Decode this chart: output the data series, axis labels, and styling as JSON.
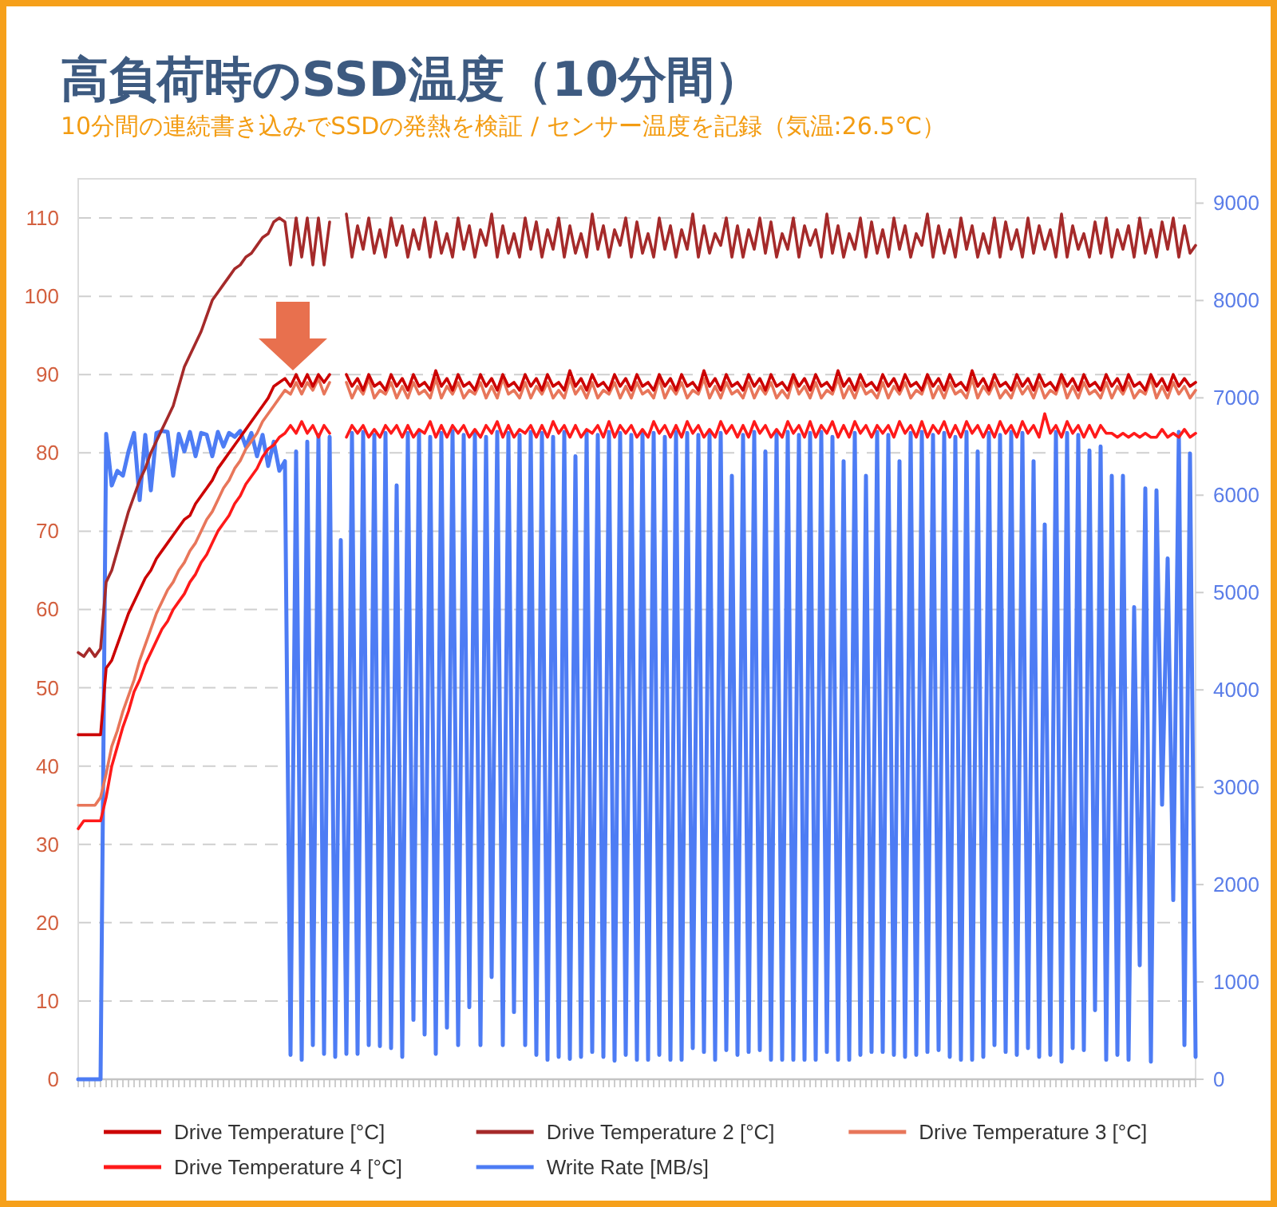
{
  "chart_data": {
    "type": "line",
    "title": "高負荷時のSSD温度（10分間）",
    "subtitle": "10分間の連続書き込みでSSDの発熱を検証 / センサー温度を記録（気温:26.5℃）",
    "categories": [
      null,
      null,
      null,
      null,
      null,
      null,
      null,
      null,
      null,
      null,
      null,
      null,
      null,
      null,
      null,
      null,
      null,
      null,
      null,
      null,
      null,
      null,
      null,
      null,
      null,
      null,
      null,
      null,
      null,
      null,
      null,
      null,
      null,
      null,
      null,
      null,
      null,
      null,
      null,
      null,
      null,
      null,
      null,
      null,
      null,
      null,
      null,
      null,
      null,
      null,
      null,
      null,
      null,
      null,
      null,
      null,
      null,
      null,
      null,
      null,
      null,
      null,
      null,
      null,
      null,
      null,
      null,
      null,
      null,
      null,
      null,
      null,
      null,
      null,
      null,
      null,
      null,
      null,
      null,
      null,
      null,
      null,
      null,
      null,
      null,
      null,
      null,
      null,
      null,
      null,
      null,
      null,
      null,
      null,
      null,
      null,
      null,
      null,
      null,
      null,
      null,
      null,
      null,
      null,
      null,
      null,
      null,
      null,
      null,
      null,
      null,
      null,
      null,
      null,
      null,
      null,
      null,
      null,
      null,
      null,
      null,
      null,
      null,
      null,
      null,
      null,
      null,
      null,
      null,
      null,
      null,
      null,
      null,
      null,
      null,
      null,
      null,
      null,
      null,
      null,
      null,
      null,
      null,
      null,
      null,
      null,
      null,
      null,
      null,
      null,
      null,
      null,
      null,
      null,
      null,
      null,
      null,
      null,
      null,
      null,
      null,
      null,
      null,
      null,
      null,
      null,
      null,
      null,
      null,
      null,
      null,
      null,
      null,
      null,
      null,
      null,
      null,
      null,
      null,
      null,
      null,
      null,
      null,
      null,
      null,
      null,
      null,
      null,
      null,
      null,
      null,
      null,
      null,
      null,
      null,
      null,
      null,
      null,
      null,
      null,
      null
    ],
    "ylim": [
      0,
      115
    ],
    "yticks": [
      0,
      10,
      20,
      30,
      40,
      50,
      60,
      70,
      80,
      90,
      100,
      110
    ],
    "y2lim": [
      0,
      9250
    ],
    "y2ticks": [
      0,
      1000,
      2000,
      3000,
      4000,
      5000,
      6000,
      7000,
      8000,
      9000
    ],
    "grid": "y",
    "legend": "bottom",
    "series": [
      {
        "name": "Drive Temperature [°C]",
        "color": "#cc0000",
        "values": [
          44,
          44,
          44,
          44,
          44,
          52.5,
          53.5,
          55.5,
          57.5,
          59.5,
          61,
          62.5,
          64,
          65,
          66.5,
          67.5,
          68.5,
          69.5,
          70.5,
          71.5,
          72,
          73.5,
          74.5,
          75.5,
          76.5,
          78,
          79,
          80,
          81,
          82,
          83,
          84,
          85,
          86,
          87,
          88.5,
          89,
          89.5,
          88.5,
          90,
          88.5,
          90,
          88.5,
          90,
          89,
          90,
          null,
          null,
          90,
          88.5,
          89.5,
          88,
          90,
          88.5,
          89,
          88,
          90,
          88.5,
          89.5,
          88,
          90,
          88.5,
          89,
          88,
          90.5,
          88.5,
          89.5,
          88,
          90,
          88.5,
          89,
          88,
          90,
          88.5,
          89.5,
          88,
          90,
          88.5,
          89,
          88,
          90,
          88.5,
          89.5,
          88,
          90,
          88.5,
          89,
          88,
          90.5,
          88.5,
          89.5,
          88,
          90,
          88.5,
          89,
          88,
          90,
          88.5,
          89.5,
          88,
          90,
          88.5,
          89,
          88,
          90,
          88.5,
          89.5,
          88,
          90,
          88.5,
          89,
          88,
          90.5,
          88.5,
          89.5,
          88,
          90,
          88.5,
          89,
          88,
          90,
          88.5,
          89.5,
          88,
          90,
          88.5,
          89,
          88,
          90,
          88.5,
          89.5,
          88,
          90,
          88.5,
          89,
          88,
          90.5,
          88.5,
          89.5,
          88,
          90,
          88.5,
          89,
          88,
          90,
          88.5,
          89.5,
          88,
          90,
          88.5,
          89,
          88,
          90,
          88.5,
          89.5,
          88,
          90,
          88.5,
          89,
          88,
          90.5,
          88.5,
          89.5,
          88,
          90,
          88.5,
          89,
          88,
          90,
          88.5,
          89.5,
          88,
          90,
          88.5,
          89,
          88,
          90,
          88.5,
          89.5,
          88,
          90,
          88.5,
          89,
          88,
          90,
          88.5,
          89.5,
          88,
          90,
          88.5,
          89,
          88,
          90,
          88.5,
          89.5,
          88,
          90,
          88.5,
          89.5,
          88.5,
          89
        ]
      },
      {
        "name": "Drive Temperature 2 [°C]",
        "color": "#a52a2a",
        "values": [
          54.5,
          54,
          55,
          54,
          55,
          63.5,
          65,
          67.5,
          70,
          72.5,
          74.5,
          76.5,
          78,
          80,
          81.5,
          83,
          84.5,
          86,
          88.5,
          91,
          92.5,
          94,
          95.5,
          97.5,
          99.5,
          100.5,
          101.5,
          102.5,
          103.5,
          104,
          105,
          105.5,
          106.5,
          107.5,
          108,
          109.5,
          110,
          109.5,
          104,
          110,
          105,
          110,
          104,
          110,
          104,
          109.5,
          null,
          null,
          110.5,
          105,
          109,
          106,
          110,
          105.5,
          108.5,
          105,
          110,
          106.5,
          109,
          105,
          108.5,
          106,
          110,
          105,
          109.5,
          105.5,
          108,
          105,
          110,
          106,
          109,
          105,
          108.5,
          106.5,
          110.5,
          105,
          109,
          105.5,
          108,
          105,
          110,
          106,
          109.5,
          105,
          108.5,
          106,
          110,
          105,
          109,
          105.5,
          108,
          105,
          110.5,
          106,
          109,
          105,
          108.5,
          106.5,
          110,
          105,
          109.5,
          105.5,
          108,
          105,
          110,
          106,
          109,
          105,
          108.5,
          106,
          110.5,
          105,
          109,
          105.5,
          108,
          106.5,
          110,
          105,
          109,
          105,
          108.5,
          106,
          110,
          105.5,
          109.5,
          105,
          108,
          106,
          110,
          105,
          109,
          106.5,
          108.5,
          105,
          110.5,
          105.5,
          109,
          105,
          108,
          106,
          110,
          105,
          109.5,
          105.5,
          108.5,
          105,
          110,
          106,
          109,
          105,
          108,
          106.5,
          110.5,
          105,
          109,
          105.5,
          108.5,
          105,
          110,
          106,
          109,
          105,
          108,
          105.5,
          110,
          105,
          109.5,
          106,
          108.5,
          105,
          110,
          105.5,
          109,
          106,
          108.5,
          105,
          110.5,
          105,
          109,
          106,
          108,
          105,
          109.5,
          105.5,
          110,
          105,
          108.5,
          106,
          109,
          105,
          110,
          105.5,
          108.5,
          105,
          109.5,
          106,
          110,
          105,
          109,
          105.5,
          106.5
        ]
      },
      {
        "name": "Drive Temperature 3 [°C]",
        "color": "#e8765a",
        "values": [
          35,
          35,
          35,
          35,
          36,
          39,
          42.5,
          44.5,
          47,
          49,
          51,
          53.5,
          55.5,
          57.5,
          59.5,
          61,
          62.5,
          63.5,
          65,
          66,
          67.5,
          68.5,
          70,
          71.5,
          72.5,
          74,
          75.5,
          76.5,
          78,
          79,
          80.5,
          81.5,
          82.5,
          84,
          85,
          86,
          87,
          88,
          87.5,
          89,
          87.5,
          89,
          88,
          89.5,
          87.5,
          89,
          null,
          null,
          89,
          87,
          88.5,
          87.5,
          89.5,
          87,
          88,
          87.5,
          89,
          87,
          88.5,
          87,
          89,
          87.5,
          88,
          87,
          89.5,
          87,
          88.5,
          87.5,
          89,
          87,
          88,
          87.5,
          89,
          87,
          88.5,
          87,
          89.5,
          87.5,
          88,
          87,
          89,
          87,
          88.5,
          87.5,
          89,
          87,
          88,
          87,
          89.5,
          87.5,
          88.5,
          87,
          89,
          87,
          88,
          87.5,
          89,
          87,
          88.5,
          87,
          89,
          87.5,
          88,
          87,
          89.5,
          87,
          88.5,
          87.5,
          89,
          87,
          88,
          87.5,
          89.5,
          87,
          88.5,
          87,
          89,
          87.5,
          88,
          87,
          89,
          87,
          88.5,
          87.5,
          89,
          87,
          88,
          87,
          89.5,
          87.5,
          88.5,
          87,
          89,
          87,
          88,
          87.5,
          89.5,
          87,
          88.5,
          87,
          89,
          87.5,
          88,
          87,
          89,
          87,
          88.5,
          87.5,
          89,
          87,
          88,
          87.5,
          89.5,
          87,
          88.5,
          87,
          89,
          87.5,
          88,
          87,
          89.5,
          87,
          88.5,
          87.5,
          89,
          87,
          88,
          87,
          89,
          87.5,
          88.5,
          87,
          89,
          87,
          88,
          87.5,
          89.5,
          87,
          88.5,
          87,
          89,
          87.5,
          88,
          87,
          89,
          87,
          88.5,
          87.5,
          89,
          87,
          88,
          87.5,
          89.5,
          87,
          88.5,
          87,
          89,
          87.5,
          88.5,
          87,
          88
        ]
      },
      {
        "name": "Drive Temperature 4 [°C]",
        "color": "#ff1a1a",
        "values": [
          32,
          33,
          33,
          33,
          33,
          36,
          40,
          42.5,
          45,
          47,
          49.5,
          51,
          53,
          54.5,
          56,
          57.5,
          58.5,
          60,
          61,
          62,
          63.5,
          64.5,
          66,
          67,
          68.5,
          70,
          71,
          72,
          73.5,
          74.5,
          76,
          77,
          78,
          79.5,
          80.5,
          81,
          82,
          82.5,
          83.5,
          82.5,
          84,
          82.5,
          83.5,
          82,
          83.5,
          82.5,
          null,
          null,
          82,
          83.5,
          82.5,
          83.5,
          82,
          83,
          82,
          83.5,
          82.5,
          83.5,
          82,
          83.5,
          82,
          83,
          82.5,
          84,
          82,
          83.5,
          82,
          83.5,
          82.5,
          83.5,
          82,
          83,
          82,
          83.5,
          82.5,
          84,
          82,
          83.5,
          82,
          83,
          82.5,
          83.5,
          82,
          83.5,
          82,
          84,
          82.5,
          83.5,
          82,
          83.5,
          82,
          83,
          82.5,
          83.5,
          82,
          84,
          82,
          83.5,
          82.5,
          83.5,
          82,
          83,
          82,
          84,
          82.5,
          83.5,
          82,
          83.5,
          82,
          84,
          82.5,
          83.5,
          82,
          83,
          82,
          84,
          82.5,
          83.5,
          82,
          83.5,
          82,
          84,
          82.5,
          83.5,
          82,
          83,
          82,
          84,
          82.5,
          83.5,
          82,
          84,
          82,
          83.5,
          82.5,
          84,
          82,
          83.5,
          82,
          84,
          82.5,
          83.5,
          82,
          83.5,
          82.5,
          83.5,
          82,
          84,
          82.5,
          83.5,
          82,
          84,
          82,
          83.5,
          82.5,
          84,
          82,
          83.5,
          82,
          84,
          82.5,
          83.5,
          82,
          83.5,
          82,
          84,
          82.5,
          83.5,
          82,
          84,
          82.5,
          83.5,
          82,
          85,
          82.5,
          83.5,
          82,
          84,
          82.5,
          83.5,
          82,
          83.5,
          82,
          83.5,
          82.5,
          82.5,
          82,
          82.5,
          82,
          82.5,
          82,
          82.5,
          82,
          82,
          83,
          82,
          82.5,
          82,
          83,
          82,
          82.5
        ]
      },
      {
        "name": "Write Rate [MB/s]",
        "color": "#4d7cf4",
        "axis": "y2",
        "values": [
          0,
          0,
          0,
          0,
          0,
          6630,
          6100,
          6250,
          6200,
          6450,
          6640,
          5950,
          6620,
          6050,
          6640,
          6660,
          6650,
          6200,
          6630,
          6450,
          6650,
          6400,
          6640,
          6620,
          6400,
          6650,
          6500,
          6640,
          6600,
          6660,
          6500,
          6640,
          6400,
          6620,
          6300,
          6550,
          6250,
          6350,
          250,
          6450,
          200,
          6550,
          350,
          6620,
          260,
          6600,
          230,
          5540,
          260,
          6640,
          260,
          6650,
          350,
          6620,
          340,
          6640,
          320,
          6100,
          230,
          6640,
          610,
          6650,
          460,
          6600,
          260,
          6640,
          530,
          6660,
          350,
          6620,
          740,
          6640,
          350,
          6600,
          1050,
          6650,
          350,
          6640,
          690,
          6620,
          350,
          6650,
          250,
          6640,
          200,
          6600,
          230,
          6650,
          210,
          6400,
          230,
          6640,
          280,
          6620,
          230,
          6650,
          190,
          6640,
          250,
          6620,
          200,
          6650,
          200,
          6640,
          250,
          6600,
          200,
          6650,
          200,
          6640,
          320,
          6620,
          280,
          6650,
          200,
          6640,
          300,
          6200,
          250,
          6620,
          280,
          6650,
          300,
          6450,
          200,
          6640,
          200,
          6650,
          200,
          6620,
          200,
          6640,
          200,
          6650,
          280,
          6600,
          200,
          6350,
          200,
          6640,
          250,
          6200,
          280,
          6650,
          280,
          6620,
          250,
          6350,
          230,
          6640,
          250,
          6650,
          280,
          6620,
          300,
          6640,
          230,
          6600,
          200,
          6650,
          200,
          6450,
          230,
          6640,
          350,
          6620,
          280,
          6650,
          250,
          6640,
          320,
          6350,
          230,
          5700,
          250,
          6650,
          180,
          6640,
          320,
          6620,
          300,
          6460,
          710,
          6500,
          200,
          6200,
          250,
          6200,
          200,
          4850,
          1170,
          6070,
          180,
          6050,
          2820,
          5350,
          1840,
          6650,
          350,
          6430,
          230
        ]
      }
    ]
  }
}
